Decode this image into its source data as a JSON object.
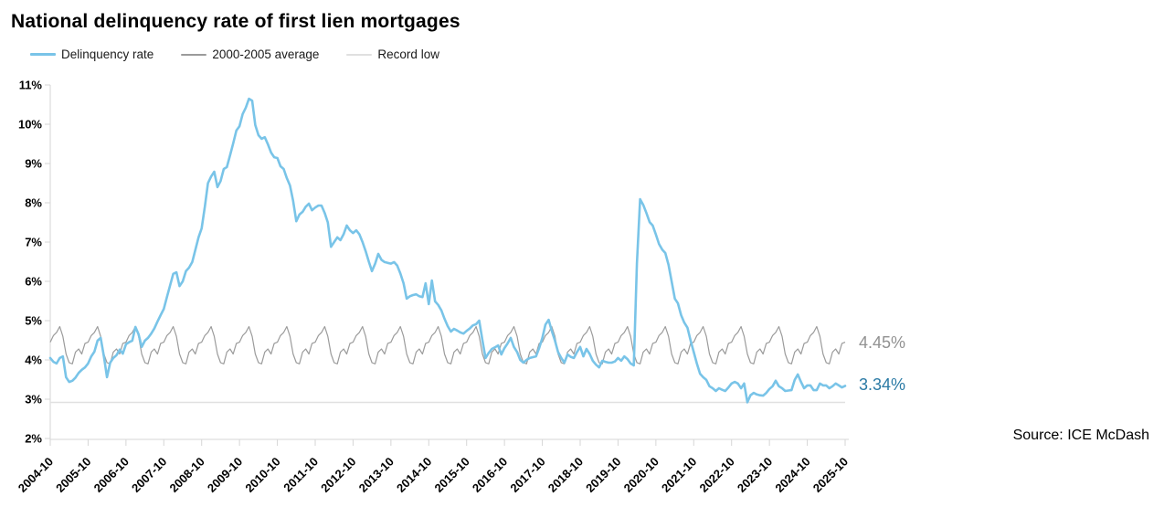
{
  "chart_data": {
    "type": "line",
    "title": "National delinquency rate of first lien mortgages",
    "source": "Source: ICE McDash",
    "x_unit": "month",
    "x_start": "2004-10",
    "x_end": "2025-10",
    "x_tick_labels": [
      "2004-10",
      "2005-10",
      "2006-10",
      "2007-10",
      "2008-10",
      "2009-10",
      "2010-10",
      "2011-10",
      "2012-10",
      "2013-10",
      "2014-10",
      "2015-10",
      "2016-10",
      "2017-10",
      "2018-10",
      "2019-10",
      "2020-10",
      "2021-10",
      "2022-10",
      "2023-10",
      "2024-10",
      "2025-10"
    ],
    "y_tick_labels": [
      "2%",
      "3%",
      "4%",
      "5%",
      "6%",
      "7%",
      "8%",
      "9%",
      "10%",
      "11%"
    ],
    "ylim": [
      2,
      11
    ],
    "grid": "none",
    "legend_position": "top-left",
    "axis_color": "#d6d6d6",
    "series": [
      {
        "name": "Delinquency rate",
        "color": "#79c4e8",
        "monthly_values": [
          4.05,
          3.95,
          3.91,
          4.05,
          4.09,
          3.56,
          3.44,
          3.47,
          3.55,
          3.67,
          3.75,
          3.81,
          3.91,
          4.09,
          4.21,
          4.49,
          4.56,
          4.09,
          3.56,
          3.93,
          4.05,
          4.12,
          4.26,
          4.16,
          4.4,
          4.45,
          4.49,
          4.84,
          4.65,
          4.33,
          4.49,
          4.56,
          4.67,
          4.8,
          4.98,
          5.14,
          5.3,
          5.6,
          5.9,
          6.19,
          6.23,
          5.88,
          6.0,
          6.26,
          6.35,
          6.49,
          6.8,
          7.12,
          7.35,
          7.9,
          8.5,
          8.67,
          8.79,
          8.4,
          8.55,
          8.86,
          8.91,
          9.21,
          9.51,
          9.84,
          9.95,
          10.26,
          10.42,
          10.65,
          10.6,
          9.98,
          9.72,
          9.63,
          9.67,
          9.49,
          9.28,
          9.16,
          9.14,
          8.93,
          8.86,
          8.63,
          8.44,
          8.05,
          7.53,
          7.7,
          7.77,
          7.9,
          7.98,
          7.81,
          7.88,
          7.93,
          7.93,
          7.74,
          7.5,
          6.88,
          7.0,
          7.12,
          7.05,
          7.2,
          7.42,
          7.3,
          7.23,
          7.3,
          7.2,
          7.0,
          6.77,
          6.5,
          6.26,
          6.45,
          6.7,
          6.55,
          6.49,
          6.47,
          6.45,
          6.49,
          6.4,
          6.2,
          5.95,
          5.56,
          5.62,
          5.65,
          5.67,
          5.62,
          5.6,
          5.95,
          5.42,
          6.02,
          5.49,
          5.4,
          5.26,
          5.05,
          4.86,
          4.72,
          4.79,
          4.75,
          4.7,
          4.67,
          4.74,
          4.8,
          4.88,
          4.91,
          5.0,
          4.5,
          4.05,
          4.18,
          4.28,
          4.32,
          4.37,
          4.14,
          4.3,
          4.42,
          4.56,
          4.33,
          4.2,
          4.0,
          3.93,
          4.0,
          4.05,
          4.07,
          4.09,
          4.3,
          4.56,
          4.9,
          5.02,
          4.74,
          4.49,
          4.2,
          4.05,
          3.93,
          4.14,
          4.08,
          4.05,
          4.2,
          4.33,
          4.09,
          4.28,
          4.15,
          3.98,
          3.88,
          3.81,
          3.98,
          3.95,
          3.93,
          3.93,
          3.96,
          4.05,
          3.98,
          4.09,
          4.02,
          3.91,
          3.86,
          6.45,
          8.09,
          7.95,
          7.74,
          7.51,
          7.42,
          7.19,
          6.95,
          6.81,
          6.72,
          6.42,
          6.0,
          5.56,
          5.44,
          5.14,
          4.95,
          4.82,
          4.5,
          4.2,
          3.91,
          3.65,
          3.56,
          3.49,
          3.33,
          3.28,
          3.21,
          3.28,
          3.24,
          3.21,
          3.3,
          3.4,
          3.44,
          3.4,
          3.28,
          3.4,
          2.92,
          3.1,
          3.16,
          3.12,
          3.1,
          3.09,
          3.16,
          3.26,
          3.33,
          3.47,
          3.33,
          3.28,
          3.21,
          3.22,
          3.23,
          3.49,
          3.63,
          3.44,
          3.28,
          3.35,
          3.35,
          3.23,
          3.23,
          3.4,
          3.35,
          3.35,
          3.28,
          3.33,
          3.4,
          3.35,
          3.3,
          3.34
        ],
        "end_value": 3.34
      },
      {
        "name": "2000-2005 average",
        "color": "#9b9b9b",
        "seasonal_pattern_oct_to_sep": [
          4.45,
          4.62,
          4.7,
          4.85,
          4.6,
          4.15,
          3.93,
          3.9,
          4.2,
          4.28,
          4.15,
          4.42
        ],
        "pattern_repeats_monthly": true,
        "end_value": 4.45
      },
      {
        "name": "Record low",
        "color": "#e0e0e0",
        "constant_value": 2.92
      }
    ],
    "end_labels": [
      {
        "text": "4.45%",
        "color": "#919191",
        "series": "2000-2005 average"
      },
      {
        "text": "3.34%",
        "color": "#2a7aa5",
        "series": "Delinquency rate"
      }
    ]
  }
}
